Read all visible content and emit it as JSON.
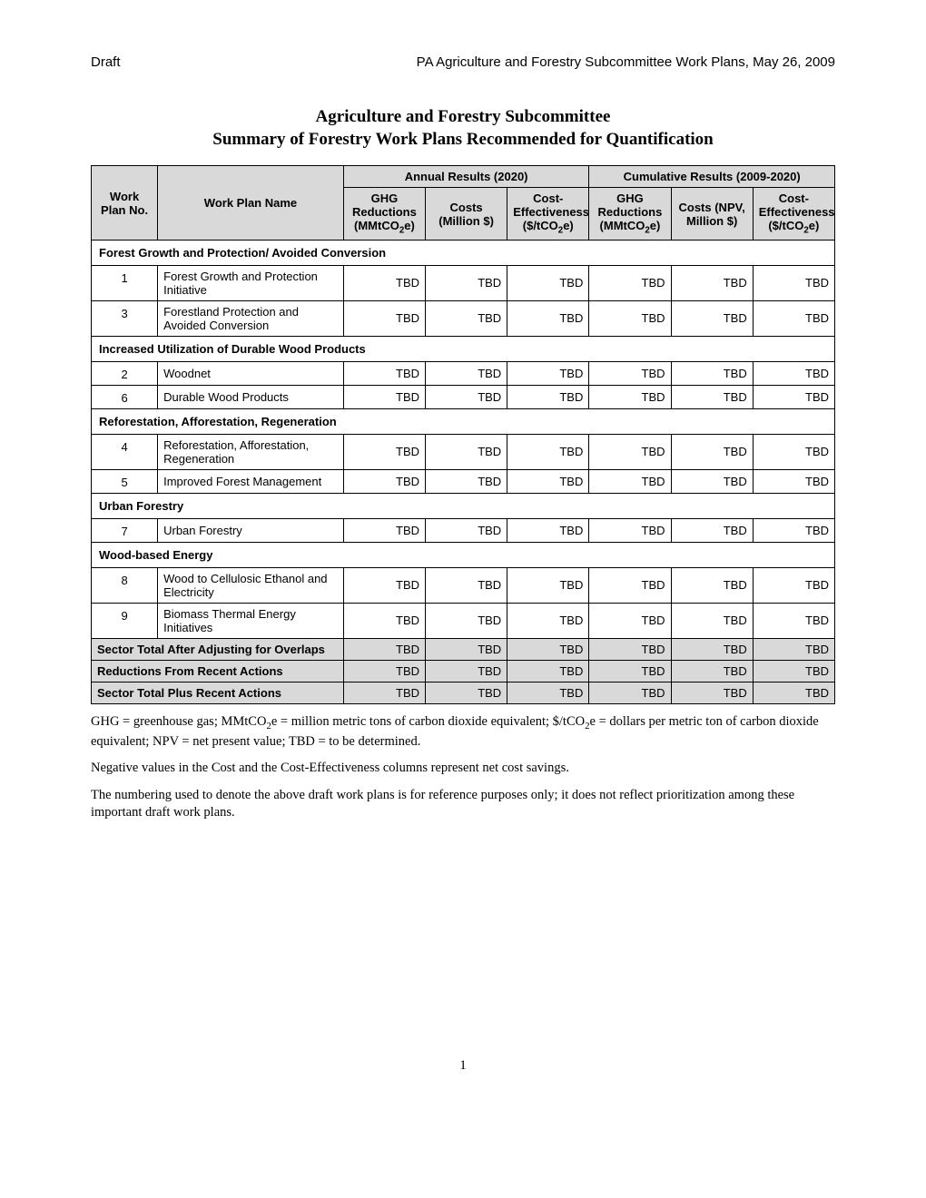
{
  "header": {
    "left": "Draft",
    "right": "PA Agriculture and Forestry Subcommittee Work Plans, May 26, 2009"
  },
  "title": {
    "line1": "Agriculture and Forestry Subcommittee",
    "line2": "Summary of Forestry Work Plans Recommended for Quantification"
  },
  "columns": {
    "no": "Work Plan No.",
    "name": "Work Plan Name",
    "annual_group": "Annual Results (2020)",
    "cumulative_group": "Cumulative Results (2009-2020)",
    "ghg_annual": "GHG Reductions (MMtCO",
    "ghg_annual_suffix": "e)",
    "costs_annual": "Costs (Million $)",
    "ce_annual_pre": "Cost-Effectiveness ($/tCO",
    "ce_annual_suffix": "e)",
    "ghg_cum": "GHG Reductions (MMtCO",
    "ghg_cum_suffix": "e)",
    "costs_cum": "Costs (NPV, Million $)",
    "ce_cum_pre": "Cost-Effectiveness ($/tCO",
    "ce_cum_suffix": "e)"
  },
  "sections": [
    {
      "title": "Forest Growth and Protection/ Avoided Conversion",
      "rows": [
        {
          "no": "1",
          "name": "Forest Growth and Protection Initiative",
          "v": [
            "TBD",
            "TBD",
            "TBD",
            "TBD",
            "TBD",
            "TBD"
          ]
        },
        {
          "no": "3",
          "name": "Forestland Protection and Avoided Conversion",
          "v": [
            "TBD",
            "TBD",
            "TBD",
            "TBD",
            "TBD",
            "TBD"
          ]
        }
      ]
    },
    {
      "title": "Increased Utilization of Durable Wood Products",
      "rows": [
        {
          "no": "2",
          "name": "Woodnet",
          "v": [
            "TBD",
            "TBD",
            "TBD",
            "TBD",
            "TBD",
            "TBD"
          ]
        },
        {
          "no": "6",
          "name": "Durable Wood Products",
          "v": [
            "TBD",
            "TBD",
            "TBD",
            "TBD",
            "TBD",
            "TBD"
          ]
        }
      ]
    },
    {
      "title": "Reforestation, Afforestation, Regeneration",
      "rows": [
        {
          "no": "4",
          "name": "Reforestation, Afforestation, Regeneration",
          "v": [
            "TBD",
            "TBD",
            "TBD",
            "TBD",
            "TBD",
            "TBD"
          ]
        },
        {
          "no": "5",
          "name": "Improved Forest Management",
          "v": [
            "TBD",
            "TBD",
            "TBD",
            "TBD",
            "TBD",
            "TBD"
          ]
        }
      ]
    },
    {
      "title": "Urban Forestry",
      "rows": [
        {
          "no": "7",
          "name": "Urban Forestry",
          "v": [
            "TBD",
            "TBD",
            "TBD",
            "TBD",
            "TBD",
            "TBD"
          ]
        }
      ]
    },
    {
      "title": "Wood-based Energy",
      "rows": [
        {
          "no": "8",
          "name": "Wood to Cellulosic Ethanol and Electricity",
          "v": [
            "TBD",
            "TBD",
            "TBD",
            "TBD",
            "TBD",
            "TBD"
          ]
        },
        {
          "no": "9",
          "name": "Biomass Thermal Energy Initiatives",
          "v": [
            "TBD",
            "TBD",
            "TBD",
            "TBD",
            "TBD",
            "TBD"
          ]
        }
      ]
    }
  ],
  "totals": [
    {
      "label": "Sector Total After Adjusting for Overlaps",
      "v": [
        "TBD",
        "TBD",
        "TBD",
        "TBD",
        "TBD",
        "TBD"
      ]
    },
    {
      "label": "Reductions From Recent Actions",
      "v": [
        "TBD",
        "TBD",
        "TBD",
        "TBD",
        "TBD",
        "TBD"
      ]
    },
    {
      "label": "Sector Total Plus Recent Actions",
      "v": [
        "TBD",
        "TBD",
        "TBD",
        "TBD",
        "TBD",
        "TBD"
      ]
    }
  ],
  "footnotes": {
    "f1_pre": "GHG = greenhouse gas; MMtCO",
    "f1_mid": "e = million metric tons of carbon dioxide equivalent; $/tCO",
    "f1_post": "e = dollars per metric ton of carbon dioxide equivalent; NPV = net present value; TBD = to be determined.",
    "f2": "Negative values in the Cost and the Cost-Effectiveness columns represent net cost savings.",
    "f3": "The numbering used to denote the above draft work plans is for reference purposes only; it does not reflect prioritization among these important draft work plans."
  },
  "page_number": "1"
}
